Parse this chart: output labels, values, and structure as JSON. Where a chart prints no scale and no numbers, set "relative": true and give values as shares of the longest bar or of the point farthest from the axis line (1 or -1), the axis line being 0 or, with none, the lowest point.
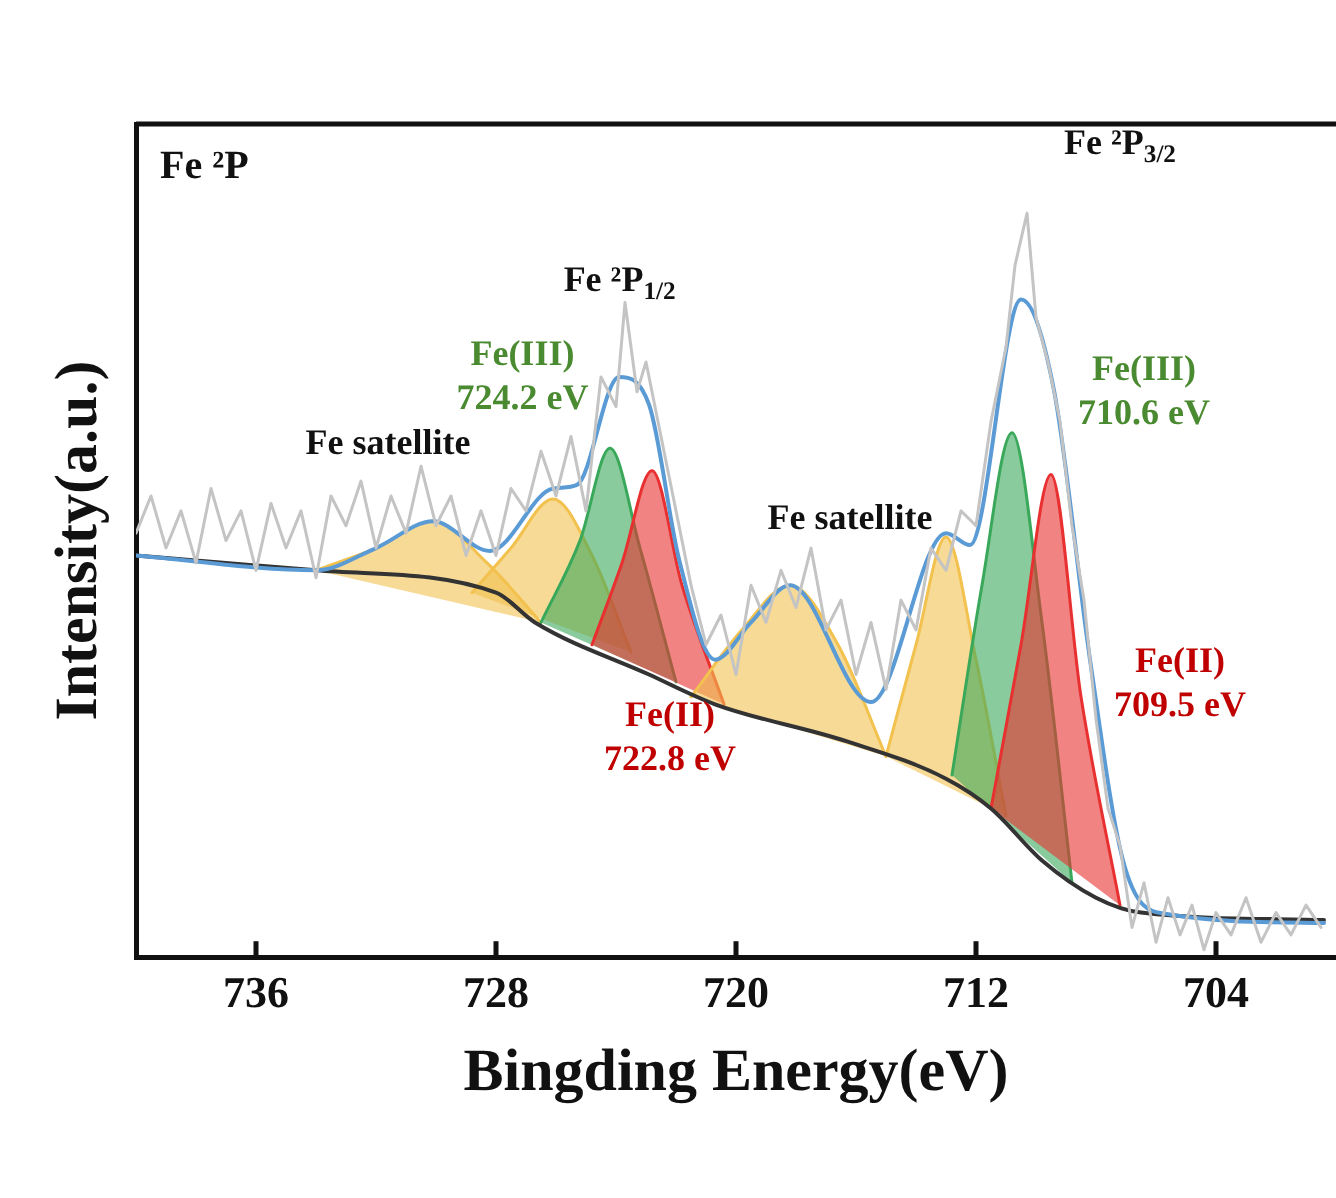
{
  "chart_data": {
    "type": "line",
    "title": "Fe ²P",
    "xlabel": "Bingding Energy(eV)",
    "ylabel": "Intensity(a.u.)",
    "relative": true,
    "xlim": [
      740,
      700
    ],
    "xticks": [
      736,
      728,
      720,
      712,
      704
    ],
    "legend": false,
    "grid": false,
    "marker": "none",
    "line_style": "solid",
    "annotations": [
      "Fe ²P$_{1/2}$",
      "Fe ²P$_{3/2}$",
      "Fe satellite",
      "Fe satellite",
      "Fe(III)\n724.2 eV",
      "Fe(II)\n722.8 eV",
      "Fe(III)\n710.6 eV",
      "Fe(II)\n709.5 eV"
    ],
    "series": [
      {
        "type": "line",
        "color": "#c4c4c4",
        "x": [
          740,
          739.5,
          739,
          738.5,
          738,
          737.5,
          737,
          736.5,
          736,
          735.5,
          735,
          734.5,
          734,
          733.5,
          733,
          732.5,
          732,
          731.5,
          731,
          730.5,
          730,
          729.5,
          729,
          728.5,
          728,
          727.5,
          727,
          726.5,
          726,
          725.5,
          725,
          724.5,
          724,
          723.7,
          723.3,
          723,
          722.5,
          722,
          721.5,
          721,
          720.5,
          720,
          719.5,
          719,
          718.5,
          718,
          717.5,
          717,
          716.5,
          716,
          715.5,
          715,
          714.5,
          714,
          713.5,
          713,
          712.5,
          712,
          711.5,
          711,
          710.7,
          710.3,
          710,
          709.6,
          709.2,
          708.8,
          708.4,
          708,
          707.6,
          707.2,
          706.8,
          706.4,
          706,
          705.6,
          705.2,
          704.8,
          704.4,
          704,
          703.5,
          703,
          702.5,
          702,
          701.5,
          701,
          700.5
        ],
        "values": [
          0.57,
          0.62,
          0.55,
          0.6,
          0.53,
          0.63,
          0.56,
          0.6,
          0.52,
          0.61,
          0.55,
          0.6,
          0.51,
          0.62,
          0.58,
          0.64,
          0.55,
          0.62,
          0.57,
          0.66,
          0.58,
          0.62,
          0.54,
          0.6,
          0.54,
          0.63,
          0.6,
          0.68,
          0.62,
          0.7,
          0.6,
          0.78,
          0.74,
          0.88,
          0.76,
          0.8,
          0.7,
          0.6,
          0.5,
          0.42,
          0.46,
          0.38,
          0.5,
          0.45,
          0.52,
          0.47,
          0.55,
          0.44,
          0.48,
          0.38,
          0.45,
          0.36,
          0.48,
          0.44,
          0.55,
          0.52,
          0.6,
          0.58,
          0.72,
          0.82,
          0.93,
          1.0,
          0.86,
          0.8,
          0.72,
          0.58,
          0.48,
          0.32,
          0.2,
          0.15,
          0.04,
          0.1,
          0.02,
          0.08,
          0.03,
          0.07,
          0.01,
          0.06,
          0.03,
          0.08,
          0.02,
          0.06,
          0.03,
          0.07,
          0.04
        ]
      },
      {
        "type": "line",
        "color": "#333333",
        "x": [
          740,
          734,
          728,
          726.7,
          722.9,
          720.7,
          716.3,
          713,
          711.5,
          709.8,
          708,
          706.5,
          700.4
        ],
        "values": [
          0.54,
          0.52,
          0.49,
          0.45,
          0.38,
          0.34,
          0.29,
          0.24,
          0.2,
          0.13,
          0.08,
          0.06,
          0.05
        ]
      },
      {
        "type": "area",
        "color": "#f2c14e",
        "x": [
          734,
          732,
          730.1,
          728.3,
          726.5
        ],
        "values": [
          0.52,
          0.55,
          0.586,
          0.53,
          0.45
        ]
      },
      {
        "type": "area",
        "color": "#f2c14e",
        "x": [
          728.8,
          727.5,
          726.1,
          724.8,
          723.5
        ],
        "values": [
          0.49,
          0.55,
          0.616,
          0.54,
          0.41
        ]
      },
      {
        "type": "area",
        "color": "#3aa85a",
        "x": [
          726.5,
          725.2,
          724.2,
          723.2,
          722
        ],
        "values": [
          0.45,
          0.56,
          0.684,
          0.55,
          0.37
        ]
      },
      {
        "type": "area",
        "color": "#e83030",
        "x": [
          724.8,
          723.8,
          722.8,
          721.8,
          720.4
        ],
        "values": [
          0.42,
          0.53,
          0.654,
          0.5,
          0.34
        ]
      },
      {
        "type": "area",
        "color": "#f2c14e",
        "x": [
          721.5,
          719.8,
          718.2,
          716.6,
          715
        ],
        "values": [
          0.35,
          0.44,
          0.5,
          0.42,
          0.27
        ]
      },
      {
        "type": "area",
        "color": "#f2c14e",
        "x": [
          715,
          714,
          713,
          712,
          711
        ],
        "values": [
          0.27,
          0.42,
          0.565,
          0.4,
          0.19
        ]
      },
      {
        "type": "area",
        "color": "#3aa85a",
        "x": [
          712.8,
          711.8,
          710.8,
          709.8,
          708.8
        ],
        "values": [
          0.245,
          0.5,
          0.705,
          0.45,
          0.1
        ]
      },
      {
        "type": "area",
        "color": "#e83030",
        "x": [
          711.5,
          710.5,
          709.5,
          708.5,
          707.2
        ],
        "values": [
          0.2,
          0.42,
          0.649,
          0.35,
          0.07
        ]
      },
      {
        "type": "line",
        "color": "#5b9bd5",
        "x": [
          740,
          734,
          732,
          730.1,
          728.2,
          726.1,
          725.3,
          723.9,
          722.9,
          721.9,
          720.7,
          719.5,
          718.2,
          715.5,
          713,
          712.2,
          710.5,
          709.4,
          708.2,
          707.1,
          705.8,
          700.4
        ],
        "values": [
          0.54,
          0.52,
          0.55,
          0.586,
          0.546,
          0.63,
          0.635,
          0.78,
          0.743,
          0.535,
          0.4,
          0.45,
          0.5,
          0.343,
          0.57,
          0.554,
          0.884,
          0.762,
          0.4,
          0.13,
          0.059,
          0.046
        ]
      }
    ]
  }
}
